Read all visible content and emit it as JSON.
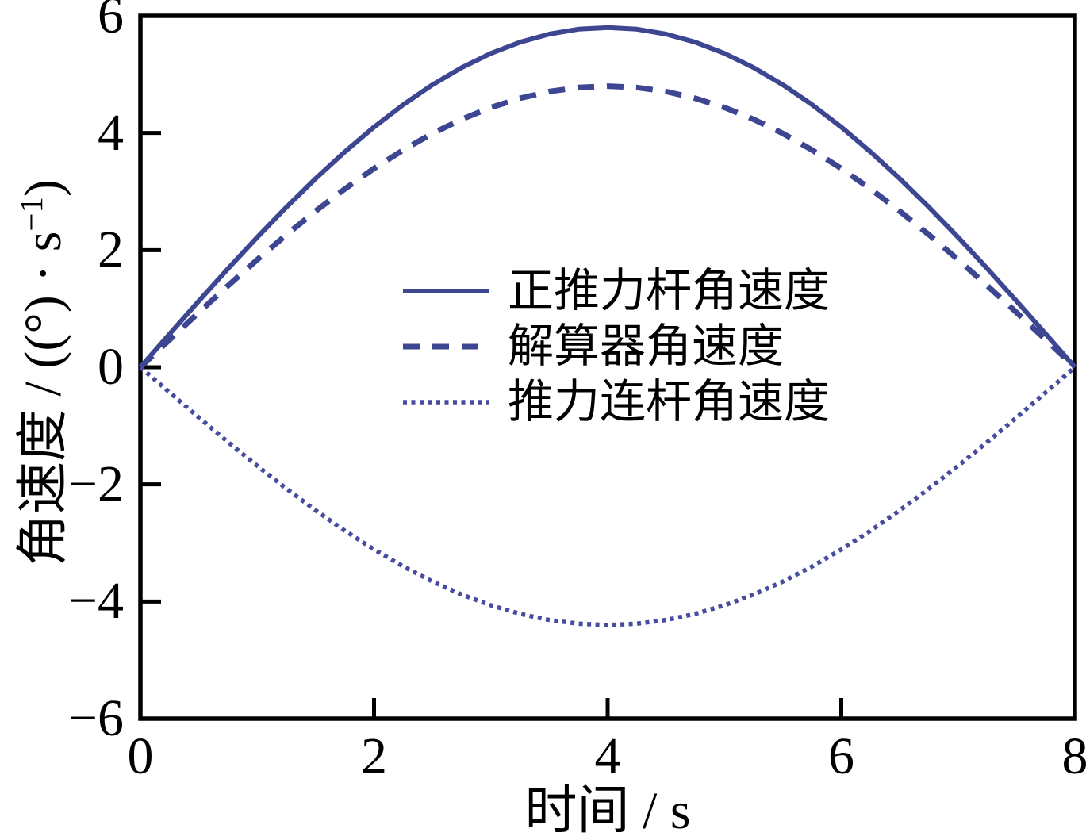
{
  "chart_data": {
    "type": "line",
    "title": "",
    "xlabel": "时间 / s",
    "ylabel": "角速度 / ((°) · s−1)",
    "ylabel_parts": {
      "main": "角速度 / ((°) · s",
      "sup": "−1",
      "end": ")"
    },
    "xlim": [
      0,
      8
    ],
    "ylim": [
      -6,
      6
    ],
    "x_ticks": [
      0,
      2,
      4,
      6,
      8
    ],
    "x_tick_labels": [
      "0",
      "2",
      "4",
      "6",
      "8"
    ],
    "y_ticks": [
      6,
      4,
      2,
      0,
      -2,
      -4,
      -6
    ],
    "y_tick_labels": [
      "6",
      "4",
      "2",
      "0",
      "−2",
      "−4",
      "−6"
    ],
    "grid": false,
    "legend_position": "inside-center",
    "colors": {
      "curve": "#3C4691",
      "axis": "#000000",
      "text": "#000000",
      "background": "#FFFFFF"
    },
    "x": [
      0,
      0.25,
      0.5,
      0.75,
      1,
      1.25,
      1.5,
      1.75,
      2,
      2.25,
      2.5,
      2.75,
      3,
      3.25,
      3.5,
      3.75,
      4,
      4.25,
      4.5,
      4.75,
      5,
      5.25,
      5.5,
      5.75,
      6,
      6.25,
      6.5,
      6.75,
      7,
      7.25,
      7.5,
      7.75,
      8
    ],
    "series": [
      {
        "name": "正推力杆角速度",
        "style": "solid",
        "color": "#3C4691",
        "values": [
          0,
          0.569,
          1.131,
          1.684,
          2.22,
          2.734,
          3.222,
          3.679,
          4.101,
          4.483,
          4.823,
          5.115,
          5.359,
          5.55,
          5.689,
          5.772,
          5.8,
          5.772,
          5.689,
          5.55,
          5.359,
          5.115,
          4.823,
          4.483,
          4.101,
          3.679,
          3.222,
          2.734,
          2.22,
          1.684,
          1.131,
          0.569,
          0
        ]
      },
      {
        "name": "解算器角速度",
        "style": "dashed",
        "color": "#3C4691",
        "values": [
          0,
          0.47,
          0.936,
          1.393,
          1.837,
          2.263,
          2.667,
          3.045,
          3.394,
          3.71,
          3.991,
          4.233,
          4.435,
          4.593,
          4.708,
          4.777,
          4.8,
          4.777,
          4.708,
          4.593,
          4.435,
          4.233,
          3.991,
          3.71,
          3.394,
          3.045,
          2.667,
          2.263,
          1.837,
          1.393,
          0.936,
          0.47,
          0
        ]
      },
      {
        "name": "推力连杆角速度",
        "style": "dotted",
        "color": "#474C9E",
        "values": [
          0,
          -0.431,
          -0.858,
          -1.277,
          -1.684,
          -2.074,
          -2.444,
          -2.791,
          -3.111,
          -3.401,
          -3.658,
          -3.88,
          -4.065,
          -4.211,
          -4.315,
          -4.379,
          -4.4,
          -4.379,
          -4.315,
          -4.211,
          -4.065,
          -3.88,
          -3.658,
          -3.401,
          -3.111,
          -2.791,
          -2.444,
          -2.074,
          -1.684,
          -1.277,
          -0.858,
          -0.431,
          0
        ]
      }
    ]
  }
}
